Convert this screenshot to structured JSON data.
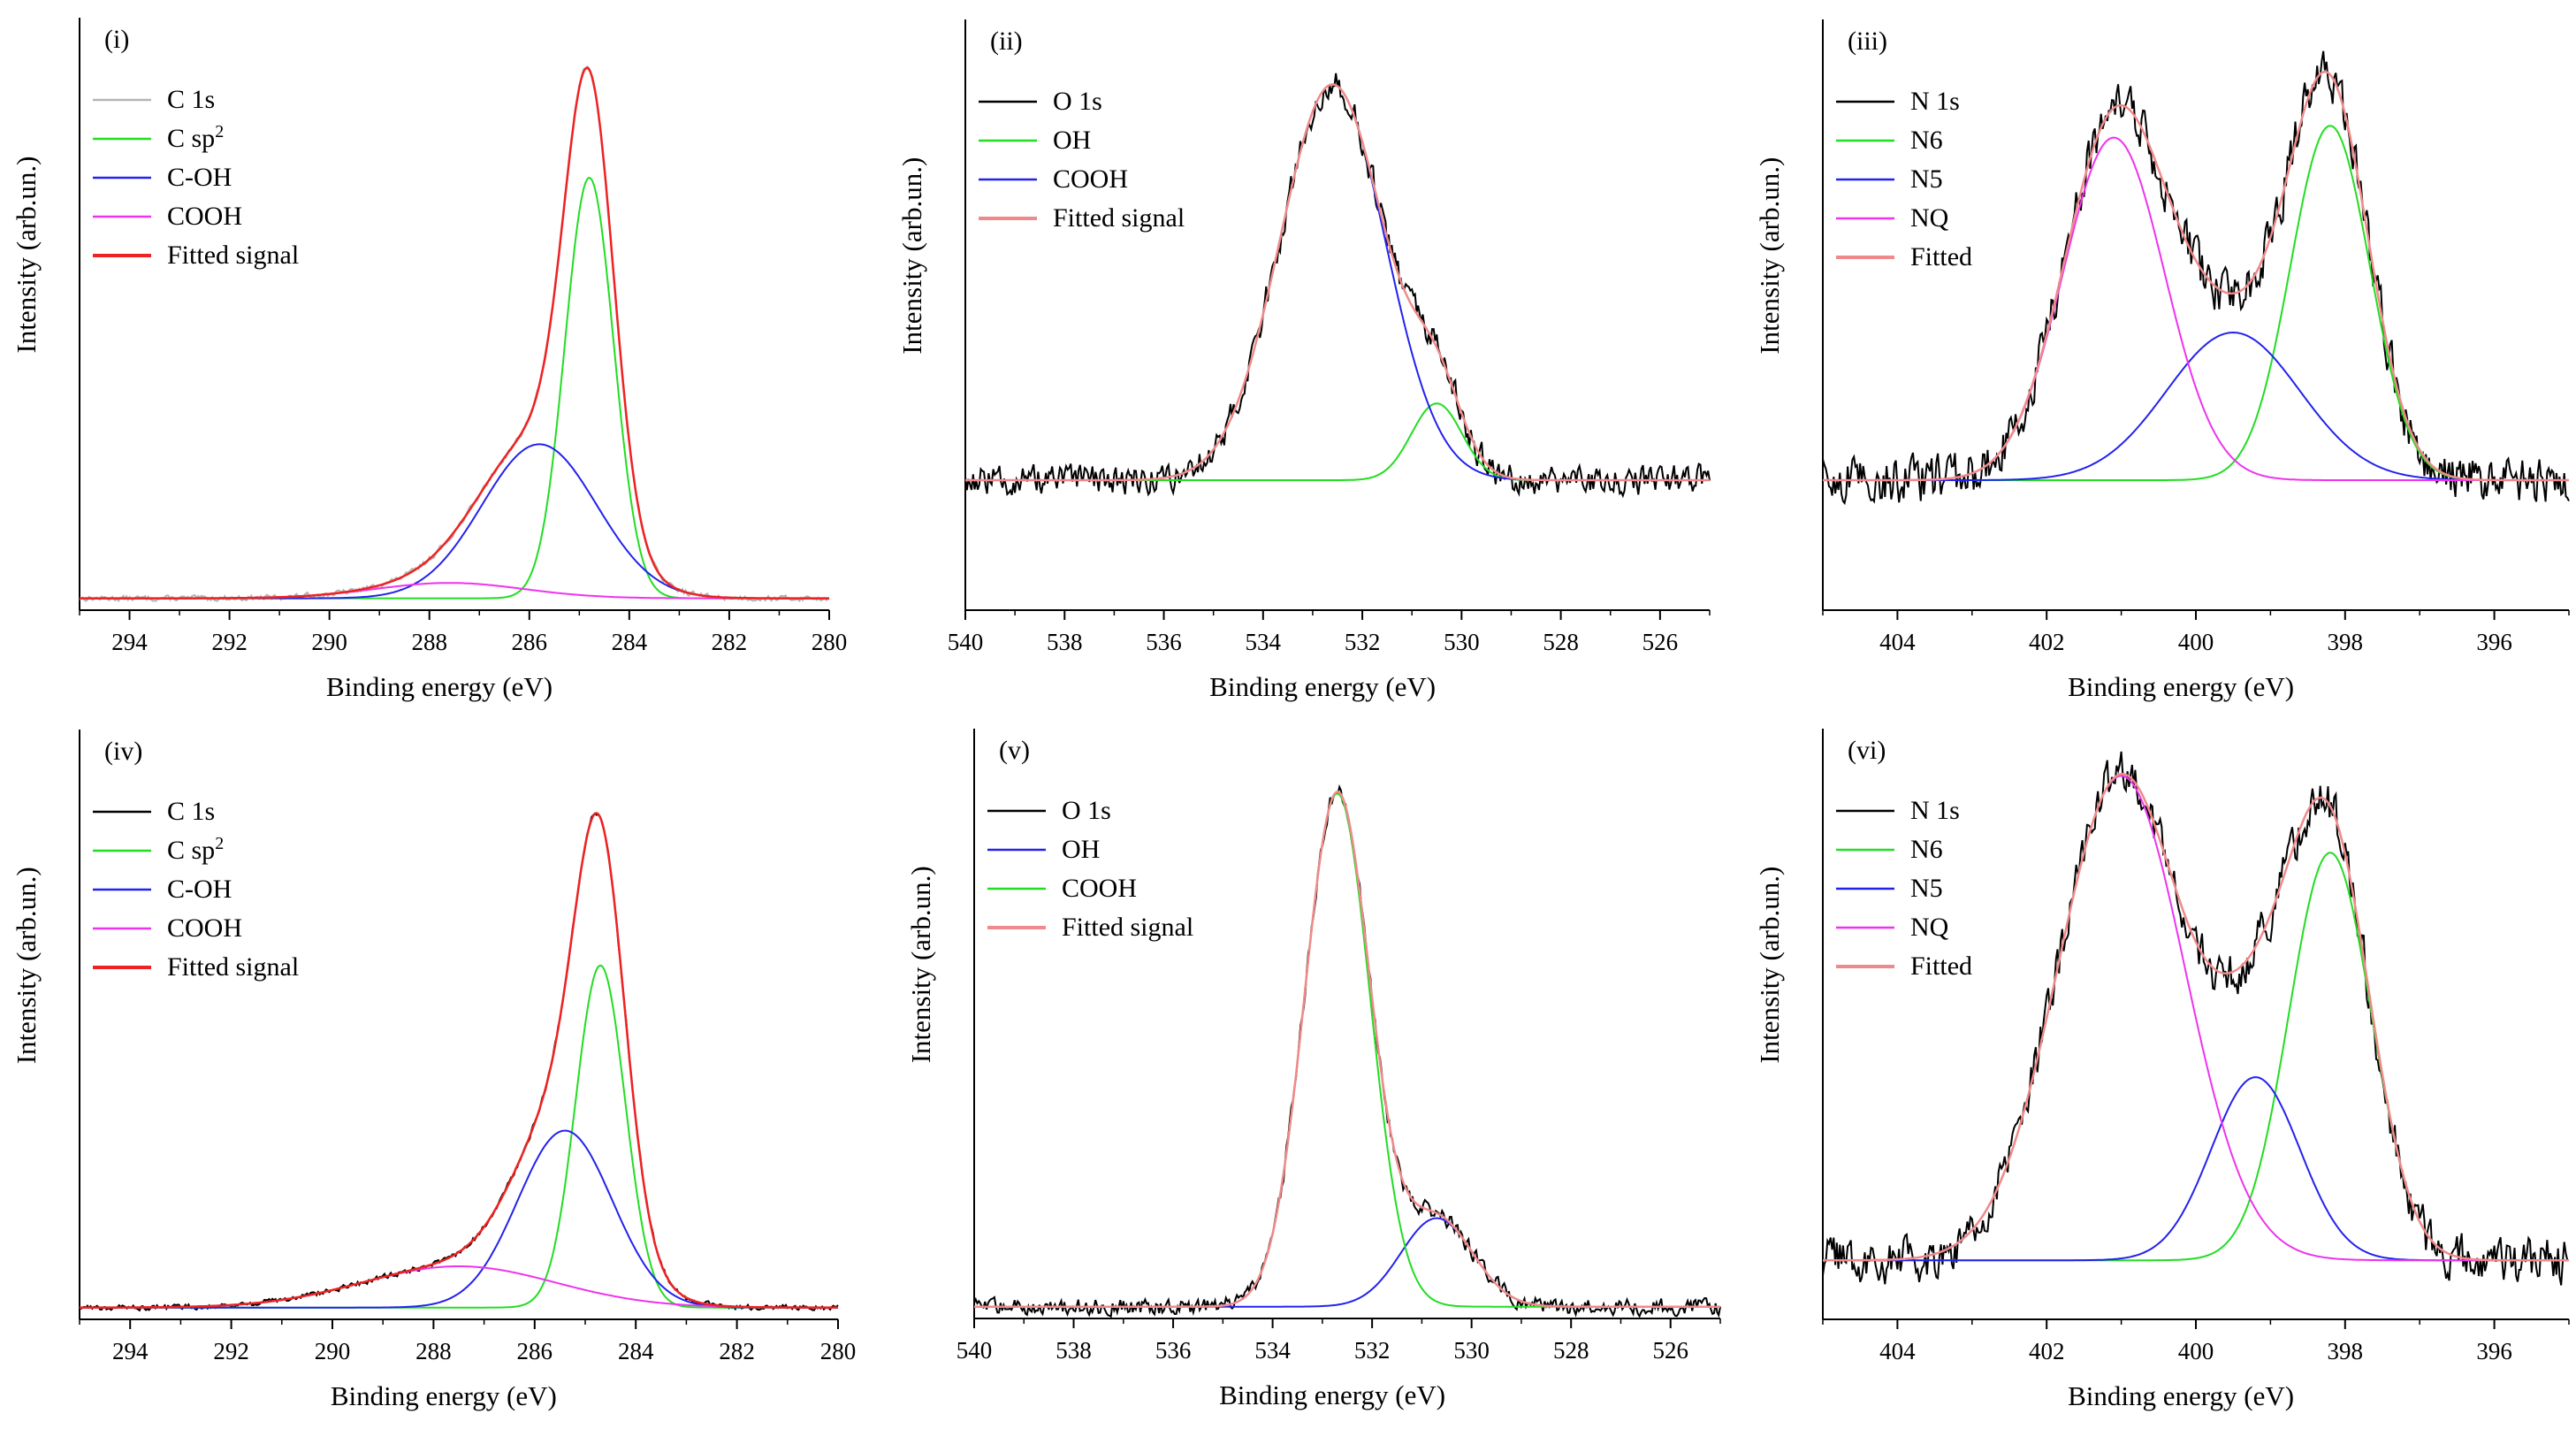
{
  "figure": {
    "ylabel": "Intensity (arb.un.)",
    "xlabel": "Binding energy (eV)"
  },
  "chart_data": [
    {
      "panel": "(i)",
      "type": "line",
      "spectrum": "C 1s",
      "xlabel": "Binding energy (eV)",
      "ylabel": "Intensity (arb.un.)",
      "xlim": [
        295,
        280
      ],
      "xticks": [
        294,
        292,
        290,
        288,
        286,
        284,
        282,
        280
      ],
      "baseline": 0.02,
      "noise": 0.004,
      "bkg_step": {
        "center": 287.5,
        "width": 1.5,
        "height": 0.0
      },
      "series": [
        {
          "name": "C 1s",
          "color": "#b4b4b4",
          "role": "data"
        },
        {
          "name": "C sp2",
          "color": "#22dd22",
          "peaks": [
            {
              "center": 284.8,
              "fwhm": 1.15,
              "height": 0.71
            }
          ]
        },
        {
          "name": "C-OH",
          "color": "#2222ee",
          "peaks": [
            {
              "center": 285.8,
              "fwhm": 2.7,
              "height": 0.26
            }
          ]
        },
        {
          "name": "COOH",
          "color": "#ee33ee",
          "peaks": [
            {
              "center": 287.6,
              "fwhm": 3.5,
              "height": 0.026
            }
          ]
        },
        {
          "name": "Fitted signal",
          "color": "#ee2222",
          "role": "fit"
        }
      ]
    },
    {
      "panel": "(ii)",
      "type": "line",
      "spectrum": "O 1s",
      "xlabel": "Binding energy (eV)",
      "ylabel": "Intensity (arb.un.)",
      "xlim": [
        540,
        525
      ],
      "xticks": [
        540,
        538,
        536,
        534,
        532,
        530,
        528,
        526
      ],
      "baseline": 0.22,
      "noise": 0.022,
      "series": [
        {
          "name": "O 1s",
          "color": "#000000",
          "role": "data"
        },
        {
          "name": "OH",
          "color": "#22dd22",
          "peaks": [
            {
              "center": 530.5,
              "fwhm": 1.2,
              "height": 0.13
            }
          ]
        },
        {
          "name": "COOH",
          "color": "#2222ee",
          "peaks": [
            {
              "center": 532.6,
              "fwhm": 2.5,
              "height": 0.67
            }
          ]
        },
        {
          "name": "Fitted signal",
          "color": "#f08a8a",
          "role": "fit"
        }
      ]
    },
    {
      "panel": "(iii)",
      "type": "line",
      "spectrum": "N 1s",
      "xlabel": "Binding energy (eV)",
      "ylabel": "Intensity (arb.un.)",
      "xlim": [
        405,
        395
      ],
      "xticks": [
        404,
        402,
        400,
        398,
        396
      ],
      "baseline": 0.22,
      "noise": 0.035,
      "series": [
        {
          "name": "N 1s",
          "color": "#000000",
          "role": "data"
        },
        {
          "name": "N6",
          "color": "#22dd22",
          "peaks": [
            {
              "center": 398.2,
              "fwhm": 1.25,
              "height": 0.6
            }
          ]
        },
        {
          "name": "N5",
          "color": "#2222ee",
          "peaks": [
            {
              "center": 399.5,
              "fwhm": 2.1,
              "height": 0.25
            }
          ]
        },
        {
          "name": "NQ",
          "color": "#ee33ee",
          "peaks": [
            {
              "center": 401.1,
              "fwhm": 1.6,
              "height": 0.58
            }
          ]
        },
        {
          "name": "Fitted",
          "color": "#f08a8a",
          "role": "fit"
        }
      ]
    },
    {
      "panel": "(iv)",
      "type": "line",
      "spectrum": "C 1s",
      "xlabel": "Binding energy (eV)",
      "ylabel": "Intensity (arb.un.)",
      "xlim": [
        295,
        280
      ],
      "xticks": [
        294,
        292,
        290,
        288,
        286,
        284,
        282,
        280
      ],
      "baseline": 0.02,
      "noise": 0.004,
      "series": [
        {
          "name": "C 1s",
          "color": "#000000",
          "role": "data"
        },
        {
          "name": "C sp2",
          "color": "#22dd22",
          "peaks": [
            {
              "center": 284.7,
              "fwhm": 1.15,
              "height": 0.58
            }
          ]
        },
        {
          "name": "C-OH",
          "color": "#2222ee",
          "peaks": [
            {
              "center": 285.4,
              "fwhm": 2.2,
              "height": 0.3
            }
          ]
        },
        {
          "name": "COOH",
          "color": "#ee33ee",
          "peaks": [
            {
              "center": 287.5,
              "fwhm": 4.5,
              "height": 0.07
            }
          ]
        },
        {
          "name": "Fitted signal",
          "color": "#ee2222",
          "role": "fit"
        }
      ]
    },
    {
      "panel": "(v)",
      "type": "line",
      "spectrum": "O 1s",
      "xlabel": "Binding energy (eV)",
      "ylabel": "Intensity (arb.un.)",
      "xlim": [
        540,
        525
      ],
      "xticks": [
        540,
        538,
        536,
        534,
        532,
        530,
        528,
        526
      ],
      "baseline": 0.02,
      "noise": 0.012,
      "series": [
        {
          "name": "O 1s",
          "color": "#000000",
          "role": "data"
        },
        {
          "name": "OH",
          "color": "#2222ee",
          "peaks": [
            {
              "center": 530.7,
              "fwhm": 1.7,
              "height": 0.15
            }
          ]
        },
        {
          "name": "COOH",
          "color": "#22dd22",
          "peaks": [
            {
              "center": 532.7,
              "fwhm": 1.55,
              "height": 0.87
            }
          ]
        },
        {
          "name": "Fitted signal",
          "color": "#f08a8a",
          "role": "fit"
        }
      ]
    },
    {
      "panel": "(vi)",
      "type": "line",
      "spectrum": "N 1s",
      "xlabel": "Binding energy (eV)",
      "ylabel": "Intensity (arb.un.)",
      "xlim": [
        405,
        395
      ],
      "xticks": [
        404,
        402,
        400,
        398,
        396
      ],
      "baseline": 0.1,
      "noise": 0.035,
      "series": [
        {
          "name": "N 1s",
          "color": "#000000",
          "role": "data"
        },
        {
          "name": "N6",
          "color": "#22dd22",
          "peaks": [
            {
              "center": 398.2,
              "fwhm": 1.3,
              "height": 0.69
            }
          ]
        },
        {
          "name": "N5",
          "color": "#2222ee",
          "peaks": [
            {
              "center": 399.2,
              "fwhm": 1.4,
              "height": 0.31
            }
          ]
        },
        {
          "name": "NQ",
          "color": "#ee33ee",
          "peaks": [
            {
              "center": 401.0,
              "fwhm": 2.0,
              "height": 0.82
            }
          ]
        },
        {
          "name": "Fitted",
          "color": "#f08a8a",
          "role": "fit"
        }
      ]
    }
  ]
}
